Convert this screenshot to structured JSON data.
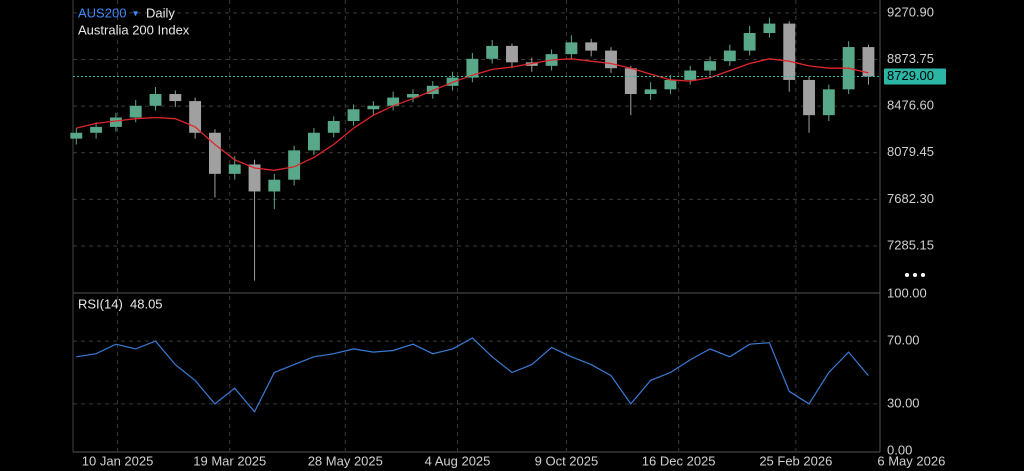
{
  "chart_data": [
    {
      "type": "candlestick",
      "symbol": "AUS200",
      "interval": "Daily",
      "subtitle": "Australia 200 Index",
      "x": [
        "2024-12-16",
        "2024-12-28",
        "2025-01-09",
        "2025-01-21",
        "2025-02-02",
        "2025-02-14",
        "2025-02-26",
        "2025-03-10",
        "2025-03-22",
        "2025-04-03",
        "2025-04-15",
        "2025-04-27",
        "2025-05-09",
        "2025-05-21",
        "2025-06-02",
        "2025-06-14",
        "2025-06-26",
        "2025-07-08",
        "2025-07-20",
        "2025-08-01",
        "2025-08-13",
        "2025-08-25",
        "2025-09-06",
        "2025-09-18",
        "2025-09-30",
        "2025-10-12",
        "2025-10-24",
        "2025-11-05",
        "2025-11-17",
        "2025-11-29",
        "2025-12-11",
        "2025-12-23",
        "2026-01-04",
        "2026-01-16",
        "2026-01-28",
        "2026-02-09",
        "2026-02-21",
        "2026-03-05",
        "2026-03-17",
        "2026-03-29",
        "2026-04-10"
      ],
      "open": [
        8200,
        8250,
        8300,
        8380,
        8480,
        8580,
        8520,
        8250,
        7900,
        7980,
        7750,
        7850,
        8100,
        8250,
        8350,
        8450,
        8480,
        8550,
        8580,
        8650,
        8720,
        8880,
        8990,
        8850,
        8820,
        8920,
        9020,
        8950,
        8800,
        8580,
        8620,
        8700,
        8780,
        8860,
        8950,
        9100,
        9180,
        8700,
        8400,
        8620,
        8980
      ],
      "high": [
        8290,
        8340,
        8420,
        8530,
        8640,
        8610,
        8550,
        8280,
        8050,
        8020,
        7900,
        8140,
        8290,
        8390,
        8490,
        8520,
        8600,
        8620,
        8690,
        8770,
        8930,
        9040,
        9010,
        8890,
        8960,
        9080,
        9050,
        8980,
        8820,
        8680,
        8740,
        8820,
        8900,
        9000,
        9160,
        9230,
        9200,
        8730,
        8660,
        9030,
        9000
      ],
      "low": [
        8150,
        8200,
        8260,
        8340,
        8440,
        8470,
        8200,
        7700,
        7850,
        6990,
        7600,
        7800,
        8060,
        8210,
        8310,
        8400,
        8440,
        8510,
        8540,
        8610,
        8680,
        8840,
        8800,
        8770,
        8780,
        8880,
        8900,
        8760,
        8400,
        8530,
        8580,
        8660,
        8740,
        8820,
        8910,
        9060,
        8600,
        8250,
        8350,
        8580,
        8660
      ],
      "close": [
        8250,
        8300,
        8380,
        8480,
        8580,
        8520,
        8250,
        7900,
        7980,
        7750,
        7850,
        8100,
        8250,
        8350,
        8450,
        8480,
        8550,
        8580,
        8650,
        8720,
        8880,
        8990,
        8850,
        8820,
        8920,
        9020,
        8950,
        8800,
        8580,
        8620,
        8700,
        8780,
        8860,
        8950,
        9100,
        9180,
        8700,
        8400,
        8620,
        8980,
        8729
      ],
      "close_label": "8729.00",
      "up_color": "#5aa88a",
      "down_color": "#a0a0a0",
      "price_line_color": "#2bb5a5",
      "ma_values": [
        8290,
        8330,
        8350,
        8370,
        8380,
        8370,
        8300,
        8150,
        8020,
        7950,
        7930,
        7960,
        8040,
        8150,
        8290,
        8400,
        8480,
        8540,
        8610,
        8680,
        8740,
        8790,
        8810,
        8840,
        8870,
        8880,
        8860,
        8840,
        8800,
        8750,
        8700,
        8690,
        8720,
        8780,
        8840,
        8880,
        8860,
        8820,
        8800,
        8800,
        8760
      ],
      "ma_color": "#e0262b",
      "xlim": [
        "2024-12-14",
        "2026-04-17"
      ],
      "xticks": [
        {
          "value": "2025-01-10",
          "label": "10 Jan 2025"
        },
        {
          "value": "2025-03-19",
          "label": "19 Mar 2025"
        },
        {
          "value": "2025-05-28",
          "label": "28 May 2025"
        },
        {
          "value": "2025-08-04",
          "label": "4 Aug 2025"
        },
        {
          "value": "2025-10-09",
          "label": "9 Oct 2025"
        },
        {
          "value": "2025-12-16",
          "label": "16 Dec 2025"
        },
        {
          "value": "2026-02-25",
          "label": "25 Feb 2026"
        },
        {
          "value": "2026-05-06",
          "label": "6 May 2026"
        }
      ],
      "ylim": [
        6885,
        9381
      ],
      "yticks": [
        {
          "value": 9270.9,
          "label": "9270.90"
        },
        {
          "value": 8873.75,
          "label": "8873.75"
        },
        {
          "value": 8476.6,
          "label": "8476.60"
        },
        {
          "value": 8079.45,
          "label": "8079.45"
        },
        {
          "value": 7682.3,
          "label": "7682.30"
        },
        {
          "value": 7285.15,
          "label": "7285.15"
        }
      ],
      "grid": true
    },
    {
      "type": "line",
      "title": "RSI(14)",
      "color": "#3a7bd5",
      "values": [
        60,
        62,
        68,
        65,
        70,
        55,
        45,
        30,
        40,
        25,
        50,
        55,
        60,
        62,
        65,
        63,
        64,
        68,
        62,
        65,
        72,
        60,
        50,
        55,
        66,
        60,
        55,
        48,
        30,
        45,
        50,
        58,
        65,
        60,
        68,
        69,
        38,
        30,
        50,
        63,
        48.05
      ],
      "ylim": [
        0,
        100
      ],
      "yticks": [
        {
          "value": 100,
          "label": "100.00"
        },
        {
          "value": 70,
          "label": "70.00"
        },
        {
          "value": 30,
          "label": "30.00"
        },
        {
          "value": 0,
          "label": "0.00"
        }
      ],
      "grid": true
    }
  ]
}
